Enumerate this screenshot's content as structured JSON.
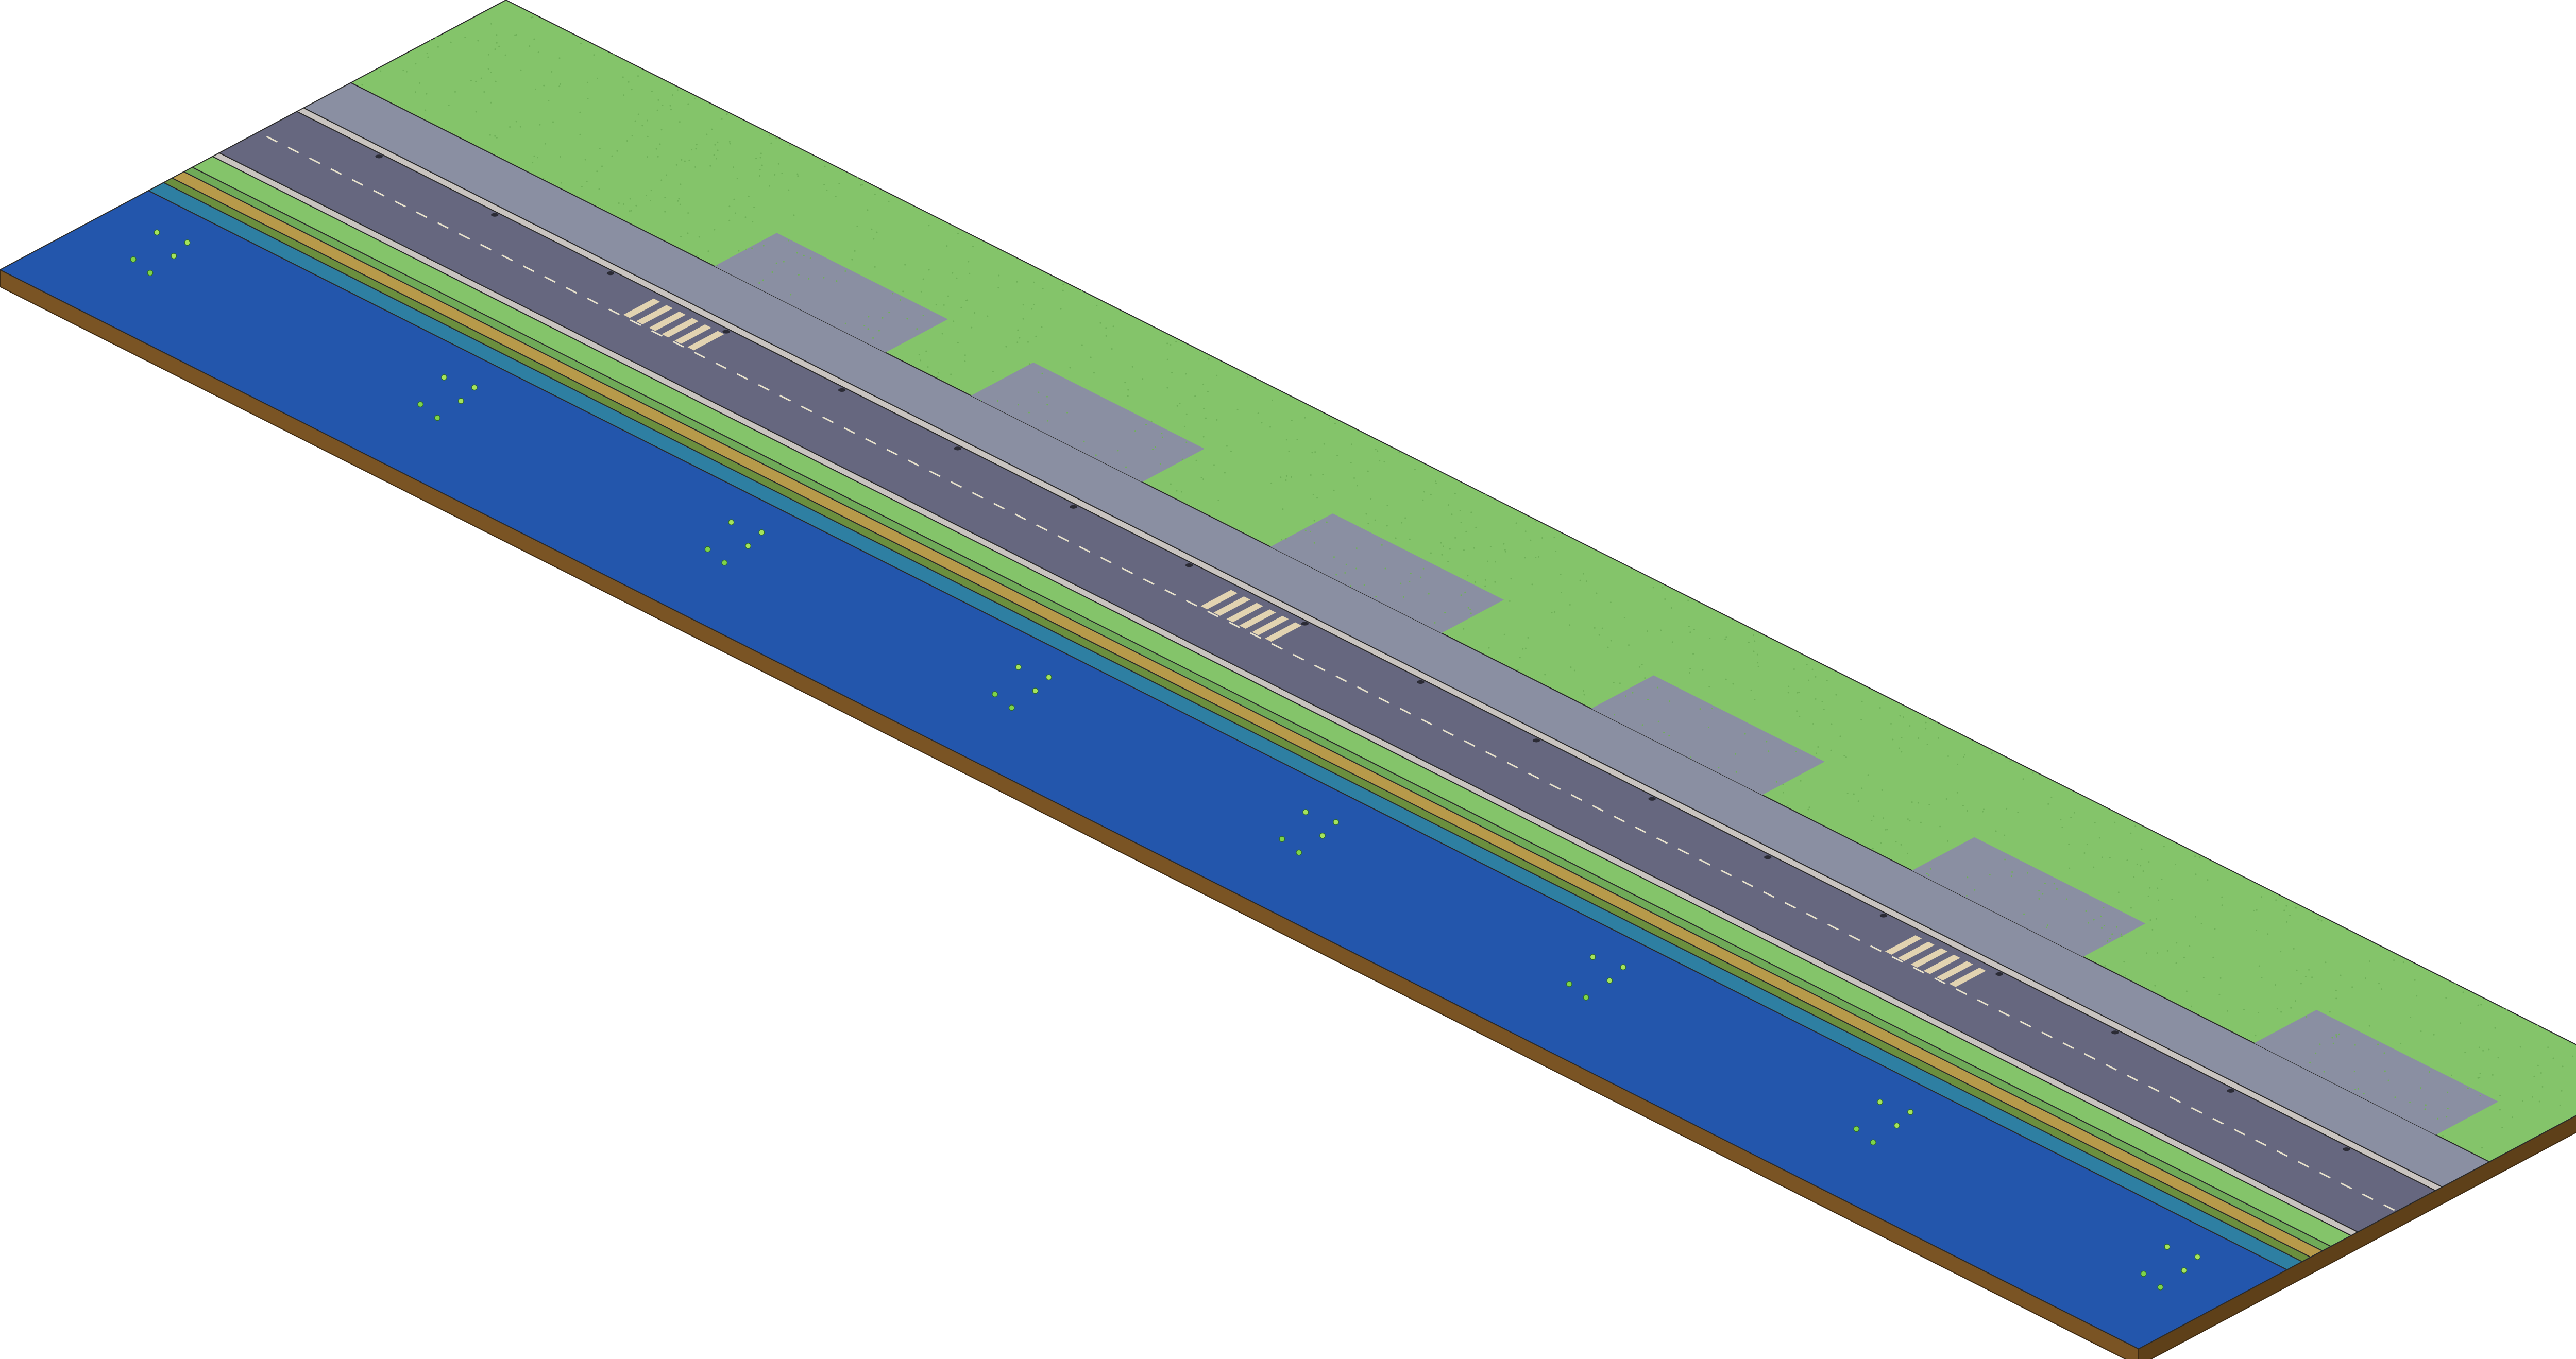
{
  "scene": {
    "kind": "isometric-riverside-road-tile",
    "layers": [
      {
        "name": "grass-field",
        "color": "#84c46a"
      },
      {
        "name": "sidewalk",
        "color": "#8a8fa2"
      },
      {
        "name": "curb",
        "color": "#c9c4c0"
      },
      {
        "name": "road",
        "color": "#66677f"
      },
      {
        "name": "lane-markings",
        "color": "#e8e2cc"
      },
      {
        "name": "crosswalk",
        "color": "#e2d3b1"
      },
      {
        "name": "grass-verge",
        "color": "#84c46a"
      },
      {
        "name": "sand-strip",
        "color": "#b79a4a"
      },
      {
        "name": "shallow-water",
        "color": "#2e7fa2"
      },
      {
        "name": "river",
        "color": "#2356ac"
      },
      {
        "name": "soil-edge",
        "color": "#7a5424"
      }
    ],
    "counts": {
      "crosswalks": 3,
      "parking_bays": 6,
      "water_plant_clusters": 8,
      "storm_drains": 18
    },
    "icons": [
      "water-plant-icon",
      "storm-drain-icon"
    ]
  }
}
